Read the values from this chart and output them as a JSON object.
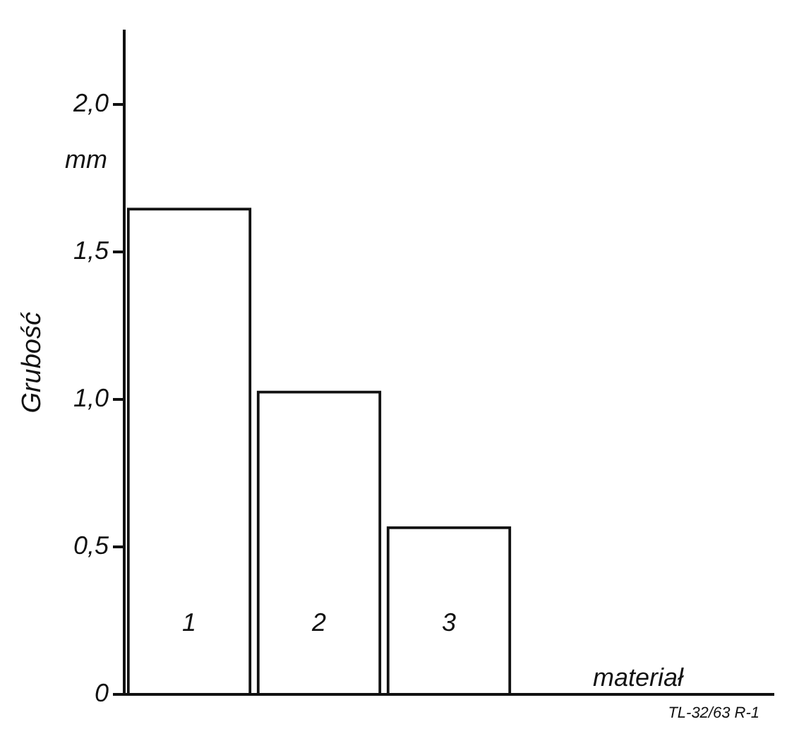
{
  "chart_data": {
    "type": "bar",
    "ylabel": "Grubość",
    "xlabel": "materiał",
    "categories": [
      "1",
      "2",
      "3"
    ],
    "values": [
      1.65,
      1.03,
      0.57
    ],
    "color": "#111111",
    "ylim": [
      0,
      2.25
    ],
    "yticks": [
      0,
      {
        "value": 0.5,
        "label": "0,5"
      },
      {
        "value": 1,
        "label": "1,0"
      },
      {
        "value": 1.5,
        "label": "1,5"
      },
      {
        "value": 2,
        "label": "2,0"
      }
    ],
    "grid": false,
    "legend": false,
    "annotations": [
      "mm",
      "TL-32/63 R-1"
    ]
  }
}
